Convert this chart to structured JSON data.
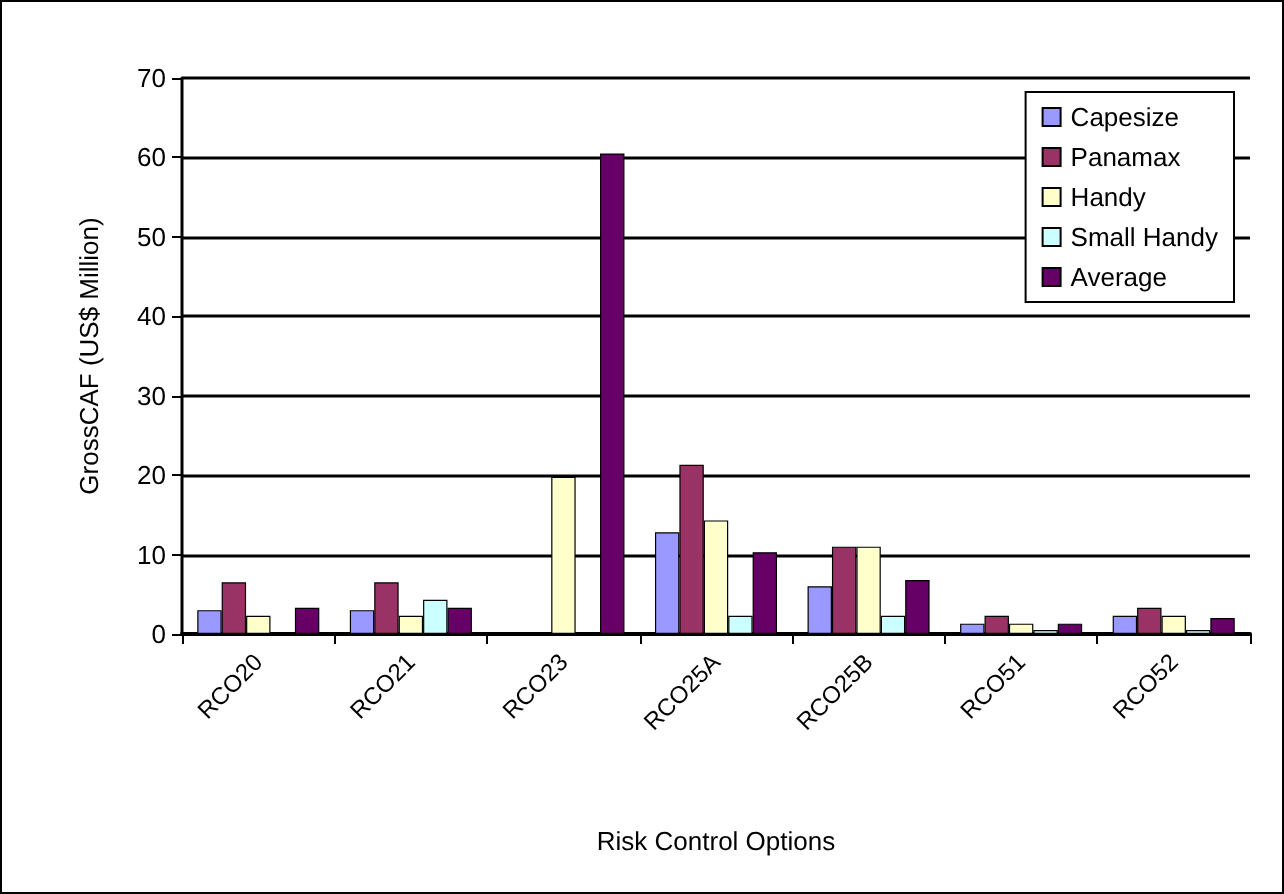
{
  "chart_data": {
    "type": "bar",
    "xlabel": "Risk Control Options",
    "ylabel": "GrossCAF (US$ Million)",
    "categories": [
      "RCO20",
      "RCO21",
      "RCO23",
      "RCO25A",
      "RCO25B",
      "RCO51",
      "RCO52"
    ],
    "series": [
      {
        "name": "Capesize",
        "color": "#9999ff",
        "values": [
          3,
          3,
          null,
          12.8,
          6,
          1.3,
          2.3
        ]
      },
      {
        "name": "Panamax",
        "color": "#993366",
        "values": [
          6.5,
          6.5,
          null,
          21.3,
          11,
          2.3,
          3.3
        ]
      },
      {
        "name": "Handy",
        "color": "#ffffcc",
        "values": [
          2.3,
          2.3,
          19.8,
          14.3,
          11,
          1.3,
          2.3
        ]
      },
      {
        "name": "Small Handy",
        "color": "#ccffff",
        "values": [
          null,
          4.3,
          null,
          2.3,
          2.3,
          0.5,
          0.5
        ]
      },
      {
        "name": "Average",
        "color": "#660066",
        "values": [
          3.3,
          3.3,
          60.5,
          10.3,
          6.8,
          1.3,
          2
        ]
      }
    ],
    "ylim": [
      0,
      70
    ],
    "yticks": [
      0,
      10,
      20,
      30,
      40,
      50,
      60,
      70
    ],
    "grid": "y",
    "legend": "top right"
  }
}
